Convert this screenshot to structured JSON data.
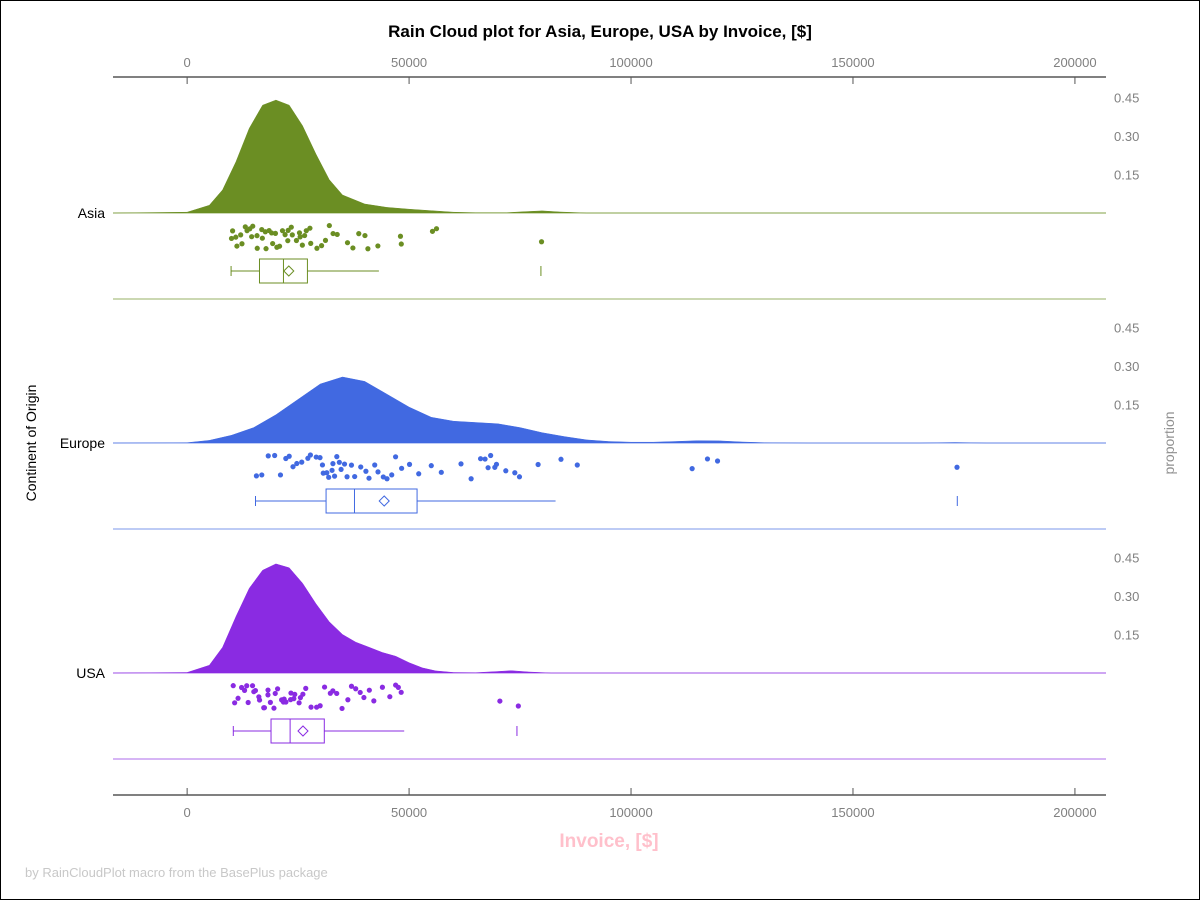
{
  "chart_data": {
    "type": "raincloud",
    "title": "Rain Cloud plot for Asia, Europe, USA by Invoice, [$]",
    "xlabel": "Invoice, [$]",
    "ylabel": "Continent of Origin",
    "y2label": "proportion",
    "footnote": "by RainCloudPlot macro from the BasePlus package",
    "xlim": [
      -16700,
      207000
    ],
    "xticks": [
      0,
      50000,
      100000,
      150000,
      200000
    ],
    "xtick_labels": [
      "0",
      "50000",
      "100000",
      "150000",
      "200000"
    ],
    "density_ticks": [
      0.15,
      0.3,
      0.45
    ],
    "density_tick_labels": [
      "0.15",
      "0.30",
      "0.45"
    ],
    "xlabel_color": "#FFC0CB",
    "grid": false,
    "groups": [
      {
        "name": "Asia",
        "color": "#6B8E23",
        "box": {
          "min": 9900,
          "q1": 16300,
          "median": 21700,
          "mean": 22900,
          "q3": 27100,
          "whisker_high": 43200,
          "max": 79700
        },
        "density": [
          [
            -16700,
            0
          ],
          [
            0,
            0.003
          ],
          [
            5000,
            0.03
          ],
          [
            8000,
            0.09
          ],
          [
            11000,
            0.2
          ],
          [
            14000,
            0.33
          ],
          [
            17000,
            0.42
          ],
          [
            20000,
            0.44
          ],
          [
            23000,
            0.42
          ],
          [
            26000,
            0.34
          ],
          [
            29000,
            0.23
          ],
          [
            32000,
            0.13
          ],
          [
            35000,
            0.07
          ],
          [
            40000,
            0.035
          ],
          [
            45000,
            0.022
          ],
          [
            50000,
            0.015
          ],
          [
            55000,
            0.009
          ],
          [
            60000,
            0.003
          ],
          [
            65000,
            0.001
          ],
          [
            72000,
            0.001
          ],
          [
            76000,
            0.005
          ],
          [
            80000,
            0.008
          ],
          [
            84000,
            0.004
          ],
          [
            90000,
            0
          ],
          [
            207000,
            0
          ]
        ],
        "points": [
          10000,
          10500,
          11000,
          11500,
          12000,
          12500,
          13000,
          13500,
          14000,
          14500,
          15000,
          15500,
          16000,
          16500,
          17000,
          17500,
          18000,
          18500,
          19000,
          19500,
          20000,
          20500,
          21000,
          21500,
          22000,
          22500,
          23000,
          23500,
          24000,
          24500,
          25000,
          25500,
          26000,
          26500,
          27000,
          27500,
          28000,
          29000,
          30000,
          31000,
          32000,
          33000,
          34000,
          36000,
          37500,
          39000,
          40000,
          41000,
          43000,
          48000,
          48500,
          55000,
          56500,
          79700
        ]
      },
      {
        "name": "Europe",
        "color": "#4169E1",
        "box": {
          "min": 15400,
          "q1": 31300,
          "median": 37700,
          "mean": 44400,
          "q3": 51800,
          "whisker_high": 83000,
          "max": 173500
        },
        "density": [
          [
            -16700,
            0
          ],
          [
            0,
            0.001
          ],
          [
            5000,
            0.01
          ],
          [
            10000,
            0.03
          ],
          [
            15000,
            0.06
          ],
          [
            20000,
            0.11
          ],
          [
            25000,
            0.17
          ],
          [
            30000,
            0.23
          ],
          [
            35000,
            0.257
          ],
          [
            40000,
            0.24
          ],
          [
            45000,
            0.19
          ],
          [
            50000,
            0.14
          ],
          [
            55000,
            0.1
          ],
          [
            60000,
            0.085
          ],
          [
            65000,
            0.08
          ],
          [
            70000,
            0.075
          ],
          [
            75000,
            0.06
          ],
          [
            80000,
            0.04
          ],
          [
            85000,
            0.025
          ],
          [
            90000,
            0.012
          ],
          [
            95000,
            0.006
          ],
          [
            100000,
            0.003
          ],
          [
            105000,
            0.003
          ],
          [
            110000,
            0.006
          ],
          [
            115000,
            0.009
          ],
          [
            120000,
            0.008
          ],
          [
            125000,
            0.004
          ],
          [
            130000,
            0.001
          ],
          [
            140000,
            0
          ],
          [
            165000,
            0
          ],
          [
            173000,
            0.002
          ],
          [
            180000,
            0
          ],
          [
            207000,
            0
          ]
        ],
        "points": [
          15500,
          17000,
          18500,
          20000,
          21000,
          22000,
          23000,
          24000,
          25000,
          26000,
          27000,
          28000,
          29000,
          30000,
          30500,
          31000,
          31500,
          32000,
          32500,
          33000,
          33500,
          34000,
          34500,
          35000,
          35500,
          36000,
          37000,
          38000,
          39000,
          40000,
          41000,
          42000,
          43000,
          44000,
          45000,
          46000,
          47000,
          48000,
          50000,
          52000,
          55000,
          57000,
          62000,
          64000,
          66000,
          67000,
          68000,
          68500,
          69000,
          70000,
          72000,
          74000,
          75000,
          79000,
          84000,
          88000,
          113500,
          117500,
          119500,
          173500
        ]
      },
      {
        "name": "USA",
        "color": "#8A2BE2",
        "box": {
          "min": 10400,
          "q1": 18900,
          "median": 23200,
          "mean": 26100,
          "q3": 30900,
          "whisker_high": 48900,
          "max": 74300
        },
        "density": [
          [
            -16700,
            0
          ],
          [
            0,
            0.002
          ],
          [
            5000,
            0.03
          ],
          [
            8000,
            0.1
          ],
          [
            11000,
            0.22
          ],
          [
            14000,
            0.33
          ],
          [
            17000,
            0.4
          ],
          [
            20000,
            0.425
          ],
          [
            23000,
            0.41
          ],
          [
            26000,
            0.35
          ],
          [
            29000,
            0.27
          ],
          [
            32000,
            0.2
          ],
          [
            35000,
            0.15
          ],
          [
            38000,
            0.12
          ],
          [
            41000,
            0.1
          ],
          [
            44000,
            0.08
          ],
          [
            47000,
            0.065
          ],
          [
            50000,
            0.04
          ],
          [
            53000,
            0.02
          ],
          [
            56000,
            0.008
          ],
          [
            60000,
            0.002
          ],
          [
            65000,
            0.001
          ],
          [
            70000,
            0.006
          ],
          [
            73000,
            0.009
          ],
          [
            77000,
            0.004
          ],
          [
            82000,
            0
          ],
          [
            207000,
            0
          ]
        ],
        "points": [
          10500,
          11000,
          11500,
          12000,
          13000,
          13500,
          14000,
          14500,
          15000,
          15500,
          16000,
          16500,
          17000,
          17500,
          18000,
          18500,
          19000,
          19500,
          20000,
          20500,
          21000,
          21500,
          22000,
          22500,
          23000,
          23500,
          24000,
          24500,
          25000,
          25500,
          26000,
          27000,
          28000,
          29000,
          30000,
          31000,
          32000,
          33000,
          34000,
          35000,
          36000,
          37000,
          38000,
          39000,
          40000,
          41000,
          42000,
          44000,
          46000,
          47000,
          47500,
          48500,
          70500,
          74300
        ]
      }
    ]
  }
}
